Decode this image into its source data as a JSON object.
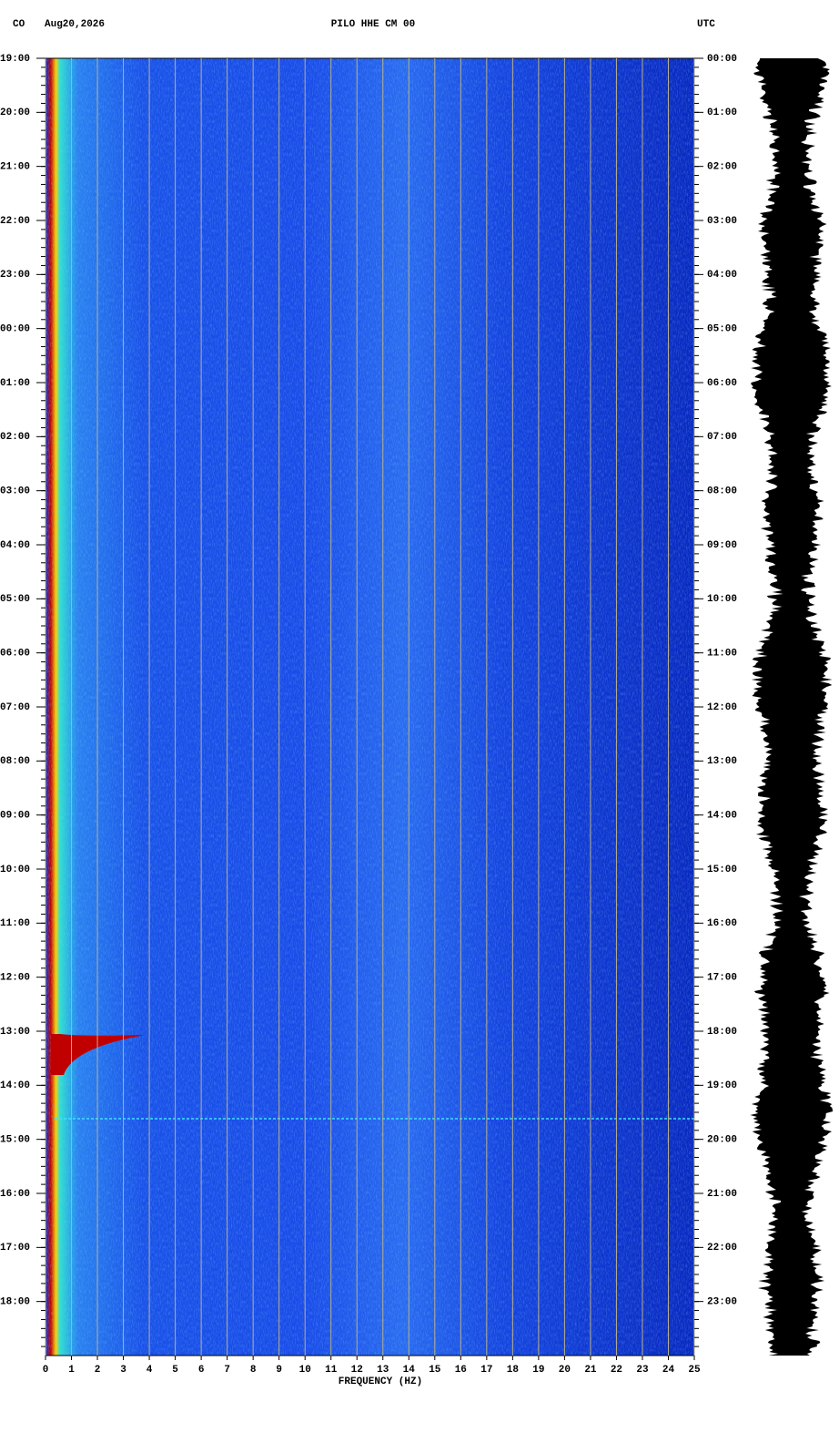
{
  "chart_data": {
    "type": "spectrogram",
    "network": "CO",
    "date": "Aug20,2026",
    "title": "PILO HHE CM 00",
    "timezone": "UTC",
    "xlabel": "FREQUENCY (HZ)",
    "xlim": [
      0,
      25
    ],
    "xticks": [
      0,
      1,
      2,
      3,
      4,
      5,
      6,
      7,
      8,
      9,
      10,
      11,
      12,
      13,
      14,
      15,
      16,
      17,
      18,
      19,
      20,
      21,
      22,
      23,
      24,
      25
    ],
    "ylim": [
      0,
      24
    ],
    "yticks": [
      {
        "value": 0,
        "label": "19:00"
      },
      {
        "value": 1,
        "label": "20:00"
      },
      {
        "value": 2,
        "label": "21:00"
      },
      {
        "value": 3,
        "label": "22:00"
      },
      {
        "value": 4,
        "label": "23:00"
      },
      {
        "value": 5,
        "label": "00:00"
      },
      {
        "value": 6,
        "label": "01:00"
      },
      {
        "value": 7,
        "label": "02:00"
      },
      {
        "value": 8,
        "label": "03:00"
      },
      {
        "value": 9,
        "label": "04:00"
      },
      {
        "value": 10,
        "label": "05:00"
      },
      {
        "value": 11,
        "label": "06:00"
      },
      {
        "value": 12,
        "label": "07:00"
      },
      {
        "value": 13,
        "label": "08:00"
      },
      {
        "value": 14,
        "label": "09:00"
      },
      {
        "value": 15,
        "label": "10:00"
      },
      {
        "value": 16,
        "label": "11:00"
      },
      {
        "value": 17,
        "label": "12:00"
      },
      {
        "value": 18,
        "label": "13:00"
      },
      {
        "value": 19,
        "label": "14:00"
      },
      {
        "value": 20,
        "label": "15:00"
      },
      {
        "value": 21,
        "label": "16:00"
      },
      {
        "value": 22,
        "label": "17:00"
      },
      {
        "value": 23,
        "label": "18:00"
      }
    ],
    "y2lim": [
      0,
      24
    ],
    "y2ticks": [
      {
        "value": 0,
        "label": "00:00"
      },
      {
        "value": 1,
        "label": "01:00"
      },
      {
        "value": 2,
        "label": "02:00"
      },
      {
        "value": 3,
        "label": "03:00"
      },
      {
        "value": 4,
        "label": "04:00"
      },
      {
        "value": 5,
        "label": "05:00"
      },
      {
        "value": 6,
        "label": "06:00"
      },
      {
        "value": 7,
        "label": "07:00"
      },
      {
        "value": 8,
        "label": "08:00"
      },
      {
        "value": 9,
        "label": "09:00"
      },
      {
        "value": 10,
        "label": "10:00"
      },
      {
        "value": 11,
        "label": "11:00"
      },
      {
        "value": 12,
        "label": "12:00"
      },
      {
        "value": 13,
        "label": "13:00"
      },
      {
        "value": 14,
        "label": "14:00"
      },
      {
        "value": 15,
        "label": "15:00"
      },
      {
        "value": 16,
        "label": "16:00"
      },
      {
        "value": 17,
        "label": "17:00"
      },
      {
        "value": 18,
        "label": "18:00"
      },
      {
        "value": 19,
        "label": "19:00"
      },
      {
        "value": 20,
        "label": "20:00"
      },
      {
        "value": 21,
        "label": "21:00"
      },
      {
        "value": 22,
        "label": "22:00"
      },
      {
        "value": 23,
        "label": "23:00"
      }
    ],
    "grid": true,
    "grid_color": "#b8b08c"
  }
}
